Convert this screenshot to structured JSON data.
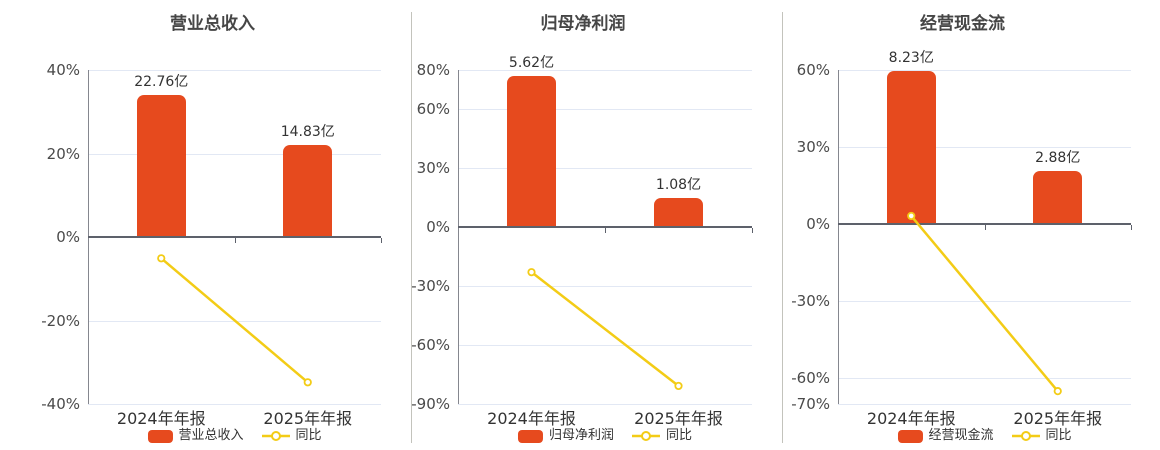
{
  "colors": {
    "bar": "#e64a1e",
    "line": "#f3cc16",
    "grid": "#e2e8f4",
    "zero_axis": "#5d616b",
    "axis_line": "#85878f",
    "divider": "#c3c3bc",
    "title_text": "#464646",
    "tick_text": "#4a4a4a",
    "label_text": "#333333"
  },
  "chart_data": [
    {
      "type": "bar",
      "title": "营业总收入",
      "categories": [
        "2024年年报",
        "2025年年报"
      ],
      "unit": "亿",
      "series": [
        {
          "name": "营业总收入",
          "type": "bar",
          "values": [
            22.76,
            14.83
          ],
          "labels": [
            "22.76亿",
            "14.83亿"
          ]
        },
        {
          "name": "同比",
          "type": "line",
          "values_pct": [
            -5.1,
            -34.8
          ]
        }
      ],
      "y_ticks_pct": [
        40,
        20,
        0,
        -20,
        -40
      ],
      "ylim_pct": [
        -40,
        40
      ],
      "bar_top_axis_pct": [
        34.0,
        22.15
      ],
      "legend": [
        "营业总收入",
        "同比"
      ],
      "grid_on": true,
      "legend_position": "bottom"
    },
    {
      "type": "bar",
      "title": "归母净利润",
      "categories": [
        "2024年年报",
        "2025年年报"
      ],
      "unit": "亿",
      "series": [
        {
          "name": "归母净利润",
          "type": "bar",
          "values": [
            5.62,
            1.08
          ],
          "labels": [
            "5.62亿",
            "1.08亿"
          ]
        },
        {
          "name": "同比",
          "type": "line",
          "values_pct": [
            -22.9,
            -80.8
          ]
        }
      ],
      "y_ticks_pct": [
        80,
        60,
        30,
        0,
        -30,
        -60,
        -90
      ],
      "ylim_pct": [
        -90,
        80
      ],
      "bar_top_axis_pct": [
        76.8,
        14.76
      ],
      "legend": [
        "归母净利润",
        "同比"
      ],
      "grid_on": true,
      "legend_position": "bottom"
    },
    {
      "type": "bar",
      "title": "经营现金流",
      "categories": [
        "2024年年报",
        "2025年年报"
      ],
      "unit": "亿",
      "series": [
        {
          "name": "经营现金流",
          "type": "bar",
          "values": [
            8.23,
            2.88
          ],
          "labels": [
            "8.23亿",
            "2.88亿"
          ]
        },
        {
          "name": "同比",
          "type": "line",
          "values_pct": [
            3.2,
            -65.0
          ]
        }
      ],
      "y_ticks_pct": [
        60,
        30,
        0,
        -30,
        -60,
        -70
      ],
      "ylim_pct": [
        -70,
        60
      ],
      "bar_top_axis_pct": [
        59.6,
        20.86
      ],
      "legend": [
        "经营现金流",
        "同比"
      ],
      "grid_on": true,
      "legend_position": "bottom"
    }
  ]
}
